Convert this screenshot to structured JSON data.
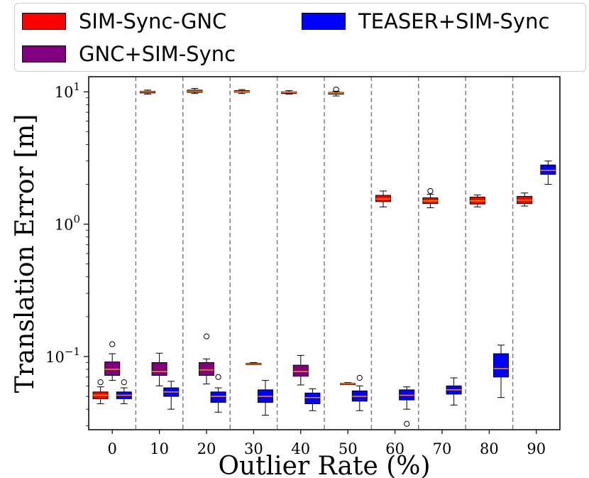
{
  "chart_data": {
    "type": "box",
    "title": "",
    "xlabel": "Outlier Rate (%)",
    "ylabel": "Translation Error [m]",
    "yscale": "log",
    "ylim": [
      0.028,
      13
    ],
    "categories": [
      "0",
      "10",
      "20",
      "30",
      "40",
      "50",
      "60",
      "70",
      "80",
      "90"
    ],
    "y_ticks": [
      {
        "value": 0.1,
        "base": "10",
        "exp": "−1"
      },
      {
        "value": 1,
        "base": "10",
        "exp": "0"
      },
      {
        "value": 10,
        "base": "10",
        "exp": "1"
      }
    ],
    "legend": {
      "position": "top",
      "entries": [
        {
          "name": "SIM-Sync-GNC",
          "color": "#ff0000"
        },
        {
          "name": "TEASER+SIM-Sync",
          "color": "#0000ff"
        },
        {
          "name": "GNC+SIM-Sync",
          "color": "#800080"
        }
      ]
    },
    "series": [
      {
        "name": "SIM-Sync-GNC",
        "color": "#ff0000",
        "boxes": [
          {
            "category": "0",
            "whislo": 0.044,
            "q1": 0.048,
            "med": 0.051,
            "q3": 0.054,
            "whishi": 0.059,
            "fliers": [
              0.064
            ]
          },
          {
            "category": "10",
            "whislo": 9.6,
            "q1": 9.8,
            "med": 10.0,
            "q3": 10.1,
            "whishi": 10.3,
            "fliers": []
          },
          {
            "category": "20",
            "whislo": 9.7,
            "q1": 9.9,
            "med": 10.1,
            "q3": 10.3,
            "whishi": 10.6,
            "fliers": []
          },
          {
            "category": "30",
            "whislo": 9.7,
            "q1": 9.9,
            "med": 10.0,
            "q3": 10.2,
            "whishi": 10.4,
            "fliers": []
          },
          {
            "category": "40",
            "whislo": 9.6,
            "q1": 9.7,
            "med": 9.9,
            "q3": 10.0,
            "whishi": 10.2,
            "fliers": []
          },
          {
            "category": "50",
            "whislo": 9.3,
            "q1": 9.6,
            "med": 9.8,
            "q3": 9.9,
            "whishi": 10.1,
            "fliers": [
              10.4
            ]
          },
          {
            "category": "60",
            "whislo": 1.35,
            "q1": 1.48,
            "med": 1.55,
            "q3": 1.65,
            "whishi": 1.78,
            "fliers": []
          },
          {
            "category": "70",
            "whislo": 1.33,
            "q1": 1.43,
            "med": 1.5,
            "q3": 1.58,
            "whishi": 1.68,
            "fliers": [
              1.78
            ]
          },
          {
            "category": "80",
            "whislo": 1.35,
            "q1": 1.42,
            "med": 1.5,
            "q3": 1.6,
            "whishi": 1.66,
            "fliers": []
          },
          {
            "category": "90",
            "whislo": 1.37,
            "q1": 1.43,
            "med": 1.52,
            "q3": 1.62,
            "whishi": 1.72,
            "fliers": []
          }
        ]
      },
      {
        "name": "GNC+SIM-Sync",
        "color": "#800080",
        "boxes": [
          {
            "category": "0",
            "whislo": 0.066,
            "q1": 0.072,
            "med": 0.08,
            "q3": 0.091,
            "whishi": 0.105,
            "fliers": [
              0.124
            ]
          },
          {
            "category": "10",
            "whislo": 0.06,
            "q1": 0.072,
            "med": 0.077,
            "q3": 0.09,
            "whishi": 0.106,
            "fliers": []
          },
          {
            "category": "20",
            "whislo": 0.062,
            "q1": 0.072,
            "med": 0.079,
            "q3": 0.09,
            "whishi": 0.096,
            "fliers": [
              0.142
            ]
          },
          {
            "category": "30",
            "whislo": 0.087,
            "q1": 0.087,
            "med": 0.088,
            "q3": 0.089,
            "whishi": 0.09,
            "fliers": []
          },
          {
            "category": "40",
            "whislo": 0.061,
            "q1": 0.071,
            "med": 0.077,
            "q3": 0.086,
            "whishi": 0.102,
            "fliers": []
          },
          {
            "category": "50",
            "whislo": 0.0615,
            "q1": 0.0618,
            "med": 0.0622,
            "q3": 0.0628,
            "whishi": 0.0635,
            "fliers": []
          }
        ]
      },
      {
        "name": "TEASER+SIM-Sync",
        "color": "#0000ff",
        "boxes": [
          {
            "category": "0",
            "whislo": 0.044,
            "q1": 0.048,
            "med": 0.051,
            "q3": 0.054,
            "whishi": 0.058,
            "fliers": [
              0.064
            ]
          },
          {
            "category": "10",
            "whislo": 0.04,
            "q1": 0.05,
            "med": 0.054,
            "q3": 0.058,
            "whishi": 0.065,
            "fliers": []
          },
          {
            "category": "20",
            "whislo": 0.038,
            "q1": 0.045,
            "med": 0.05,
            "q3": 0.054,
            "whishi": 0.058,
            "fliers": [
              0.07
            ]
          },
          {
            "category": "30",
            "whislo": 0.036,
            "q1": 0.045,
            "med": 0.05,
            "q3": 0.056,
            "whishi": 0.066,
            "fliers": []
          },
          {
            "category": "40",
            "whislo": 0.039,
            "q1": 0.044,
            "med": 0.049,
            "q3": 0.053,
            "whishi": 0.057,
            "fliers": []
          },
          {
            "category": "50",
            "whislo": 0.039,
            "q1": 0.046,
            "med": 0.05,
            "q3": 0.055,
            "whishi": 0.06,
            "fliers": [
              0.069
            ]
          },
          {
            "category": "60",
            "whislo": 0.04,
            "q1": 0.047,
            "med": 0.051,
            "q3": 0.056,
            "whishi": 0.059,
            "fliers": [
              0.031
            ]
          },
          {
            "category": "70",
            "whislo": 0.043,
            "q1": 0.052,
            "med": 0.056,
            "q3": 0.06,
            "whishi": 0.069,
            "fliers": []
          },
          {
            "category": "80",
            "whislo": 0.049,
            "q1": 0.07,
            "med": 0.081,
            "q3": 0.105,
            "whishi": 0.122,
            "fliers": []
          },
          {
            "category": "90",
            "whislo": 2.0,
            "q1": 2.38,
            "med": 2.55,
            "q3": 2.8,
            "whishi": 3.0,
            "fliers": []
          }
        ]
      }
    ]
  }
}
